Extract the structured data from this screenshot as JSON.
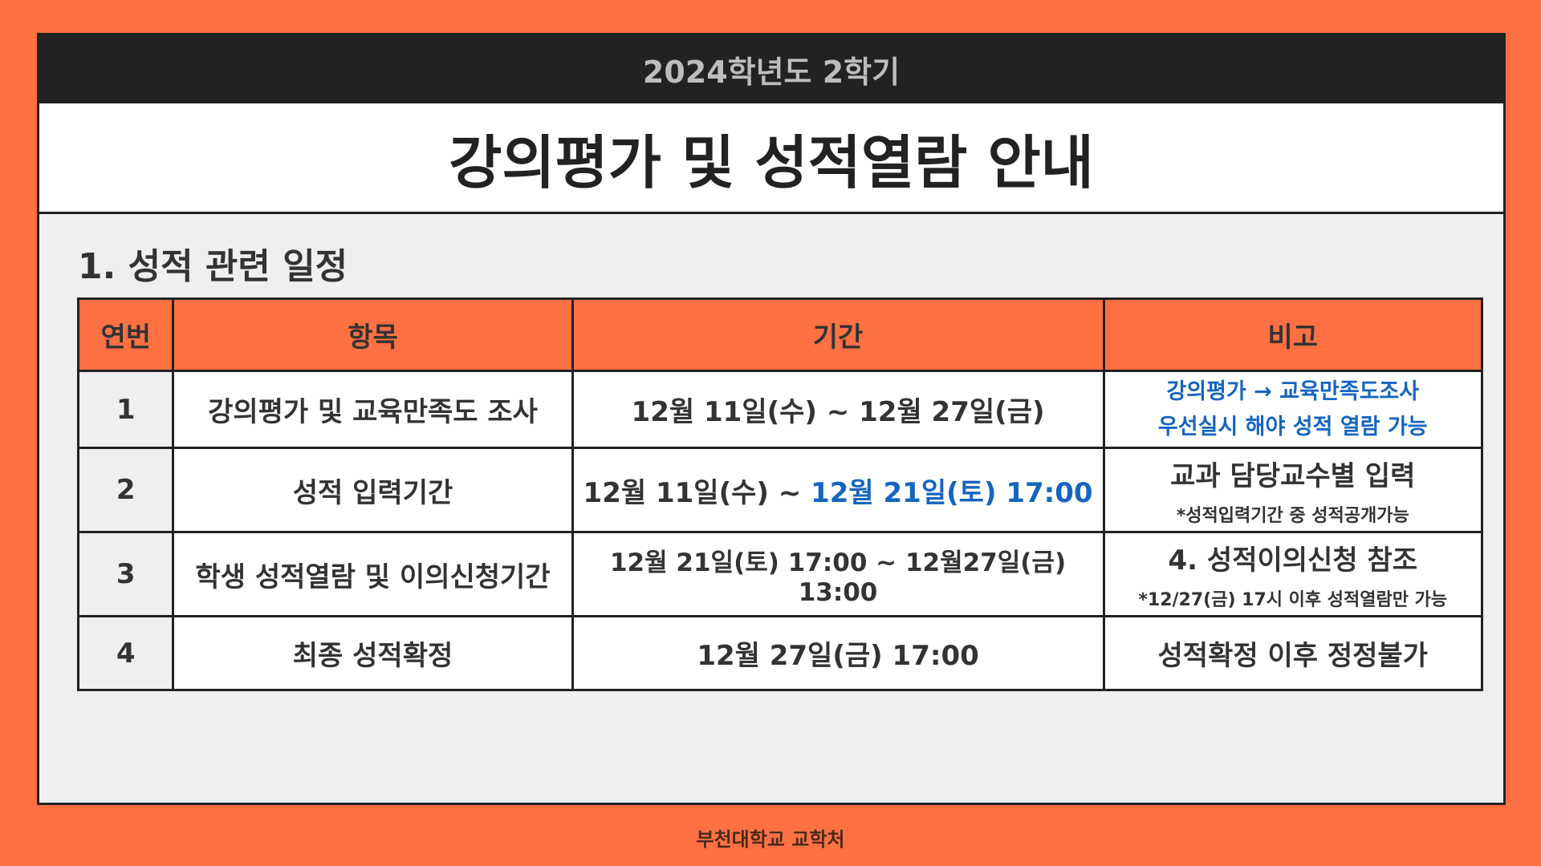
{
  "header": {
    "term": "2024학년도 2학기",
    "title": "강의평가 및 성적열람 안내"
  },
  "section": {
    "heading": "1. 성적 관련 일정"
  },
  "table": {
    "columns": [
      "연번",
      "항목",
      "기간",
      "비고"
    ],
    "rows": [
      {
        "no": "1",
        "item": "강의평가 및 교육만족도 조사",
        "period": "12월 11일(수) ~ 12월 27일(금)",
        "note_line1": "강의평가 → 교육만족도조사",
        "note_line2": "우선실시 해야 성적 열람 가능"
      },
      {
        "no": "2",
        "item": "성적 입력기간",
        "period_start": "12월 11일(수) ~ ",
        "period_end": "12월 21일(토) 17:00",
        "note_main": "교과 담당교수별 입력",
        "note_sub": "*성적입력기간 중 성적공개가능"
      },
      {
        "no": "3",
        "item": "학생 성적열람 및 이의신청기간",
        "period": "12월 21일(토) 17:00 ~ 12월27일(금) 13:00",
        "note_main": "4. 성적이의신청 참조",
        "note_sub": "*12/27(금) 17시 이후 성적열람만 가능"
      },
      {
        "no": "4",
        "item": "최종 성적확정",
        "period": "12월 27일(금) 17:00",
        "note_main": "성적확정 이후 정정불가"
      }
    ]
  },
  "footer": {
    "text": "부천대학교 교학처"
  },
  "colors": {
    "background": "#FF7043",
    "header_bar": "#222222",
    "accent_blue": "#1565C0",
    "accent_red": "#E01B1B"
  }
}
